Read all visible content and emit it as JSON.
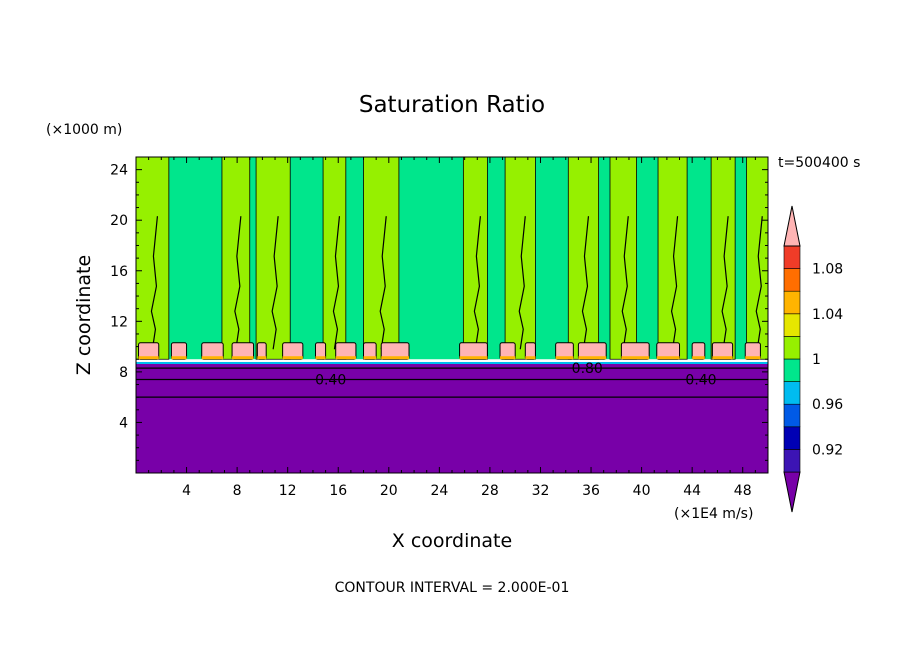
{
  "chart_data": {
    "type": "heatmap",
    "title": "Saturation Ratio",
    "xlabel": "X coordinate",
    "ylabel": "Z coordinate",
    "x_unit": "(×1E4 m/s)",
    "y_unit": "(×1000 m)",
    "time_label": "t=500400 s",
    "footer": "CONTOUR INTERVAL = 2.000E-01",
    "xlim": [
      0,
      50
    ],
    "ylim": [
      0,
      25
    ],
    "x_ticks": [
      4,
      8,
      12,
      16,
      20,
      24,
      28,
      32,
      36,
      40,
      44,
      48
    ],
    "y_ticks": [
      4,
      8,
      12,
      16,
      20,
      24
    ],
    "contour_labels": [
      {
        "text": "0.40",
        "x": 15.4,
        "y": 7.4
      },
      {
        "text": "0.80",
        "x": 35.7,
        "y": 8.3
      },
      {
        "text": "0.40",
        "x": 44.7,
        "y": 7.4
      }
    ],
    "colorbar": {
      "levels": [
        0.92,
        0.96,
        1,
        1.04,
        1.08
      ],
      "level_labels": [
        "0.92",
        "0.96",
        "1",
        "1.04",
        "1.08"
      ],
      "colors": [
        "#7800a8",
        "#3c14b4",
        "#0000b4",
        "#005ae6",
        "#00bcf0",
        "#00e68c",
        "#96f000",
        "#e6e600",
        "#ffb400",
        "#ff6e00",
        "#f03c28",
        "#ffb4b4"
      ]
    },
    "regions": {
      "dry_layer_top_z": 8.7,
      "cloud_base_z": 9.0,
      "dry_color": "#7800a8",
      "moist_color": "#00e68c",
      "supersat_color": "#96f000",
      "cap_color": "#ffb4b4"
    },
    "supersaturated_columns": [
      [
        0,
        2.6
      ],
      [
        6.8,
        9.0
      ],
      [
        9.5,
        12.2
      ],
      [
        14.8,
        16.6
      ],
      [
        18.0,
        20.8
      ],
      [
        25.9,
        27.8
      ],
      [
        29.2,
        31.6
      ],
      [
        34.2,
        36.6
      ],
      [
        37.5,
        39.6
      ],
      [
        41.3,
        43.6
      ],
      [
        45.5,
        47.4
      ],
      [
        48.3,
        50
      ]
    ],
    "cloud_caps": [
      [
        0.2,
        1.8
      ],
      [
        2.8,
        4.0
      ],
      [
        5.2,
        6.9
      ],
      [
        7.6,
        9.3
      ],
      [
        9.6,
        10.3
      ],
      [
        11.6,
        13.2
      ],
      [
        14.2,
        15.0
      ],
      [
        15.8,
        17.4
      ],
      [
        18.0,
        19.0
      ],
      [
        19.4,
        21.6
      ],
      [
        25.6,
        27.8
      ],
      [
        28.8,
        30.0
      ],
      [
        30.8,
        31.6
      ],
      [
        33.2,
        34.6
      ],
      [
        35.0,
        37.2
      ],
      [
        38.4,
        40.6
      ],
      [
        41.2,
        43.0
      ],
      [
        44.0,
        45.0
      ],
      [
        45.6,
        47.2
      ],
      [
        48.2,
        49.4
      ]
    ]
  }
}
